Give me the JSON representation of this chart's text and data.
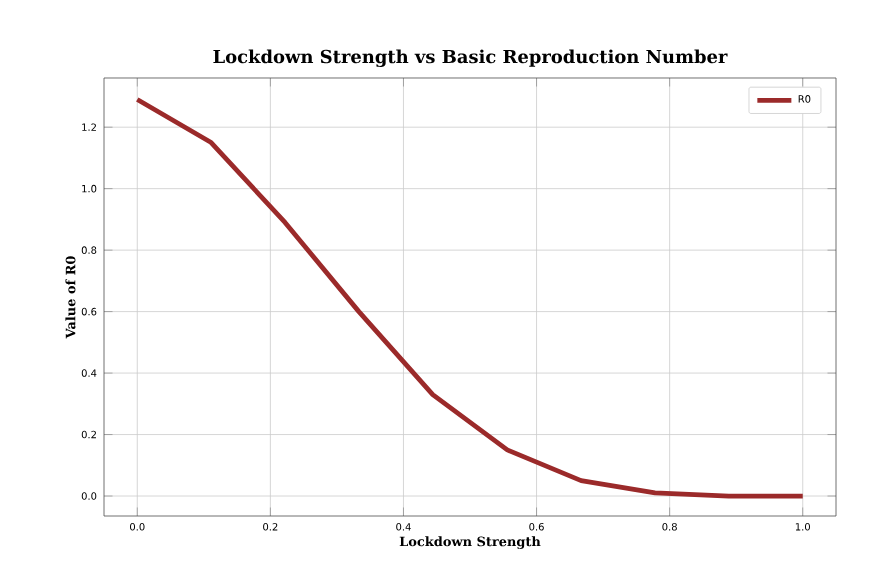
{
  "chart_data": {
    "type": "line",
    "title": "Lockdown Strength vs Basic Reproduction Number",
    "xlabel": "Lockdown Strength",
    "ylabel": "Value of R0",
    "x": [
      0.0,
      0.111,
      0.222,
      0.333,
      0.444,
      0.556,
      0.667,
      0.778,
      0.889,
      1.0
    ],
    "series": [
      {
        "name": "R0",
        "color": "#9b2a2a",
        "values": [
          1.29,
          1.15,
          0.89,
          0.6,
          0.33,
          0.15,
          0.05,
          0.01,
          0.0,
          0.0
        ]
      }
    ],
    "xlim": [
      -0.05,
      1.05
    ],
    "ylim": [
      -0.065,
      1.36
    ],
    "xticks": [
      {
        "value": 0,
        "label": "0.0"
      },
      0.2,
      0.4,
      0.6,
      0.8,
      {
        "value": 1,
        "label": "1.0"
      }
    ],
    "yticks": [
      {
        "value": 0,
        "label": "0.0"
      },
      0.2,
      0.4,
      0.6,
      0.8,
      {
        "value": 1,
        "label": "1.0"
      },
      1.2
    ],
    "grid": true,
    "legend": "top right",
    "line_style": "solid",
    "marker": "none"
  }
}
